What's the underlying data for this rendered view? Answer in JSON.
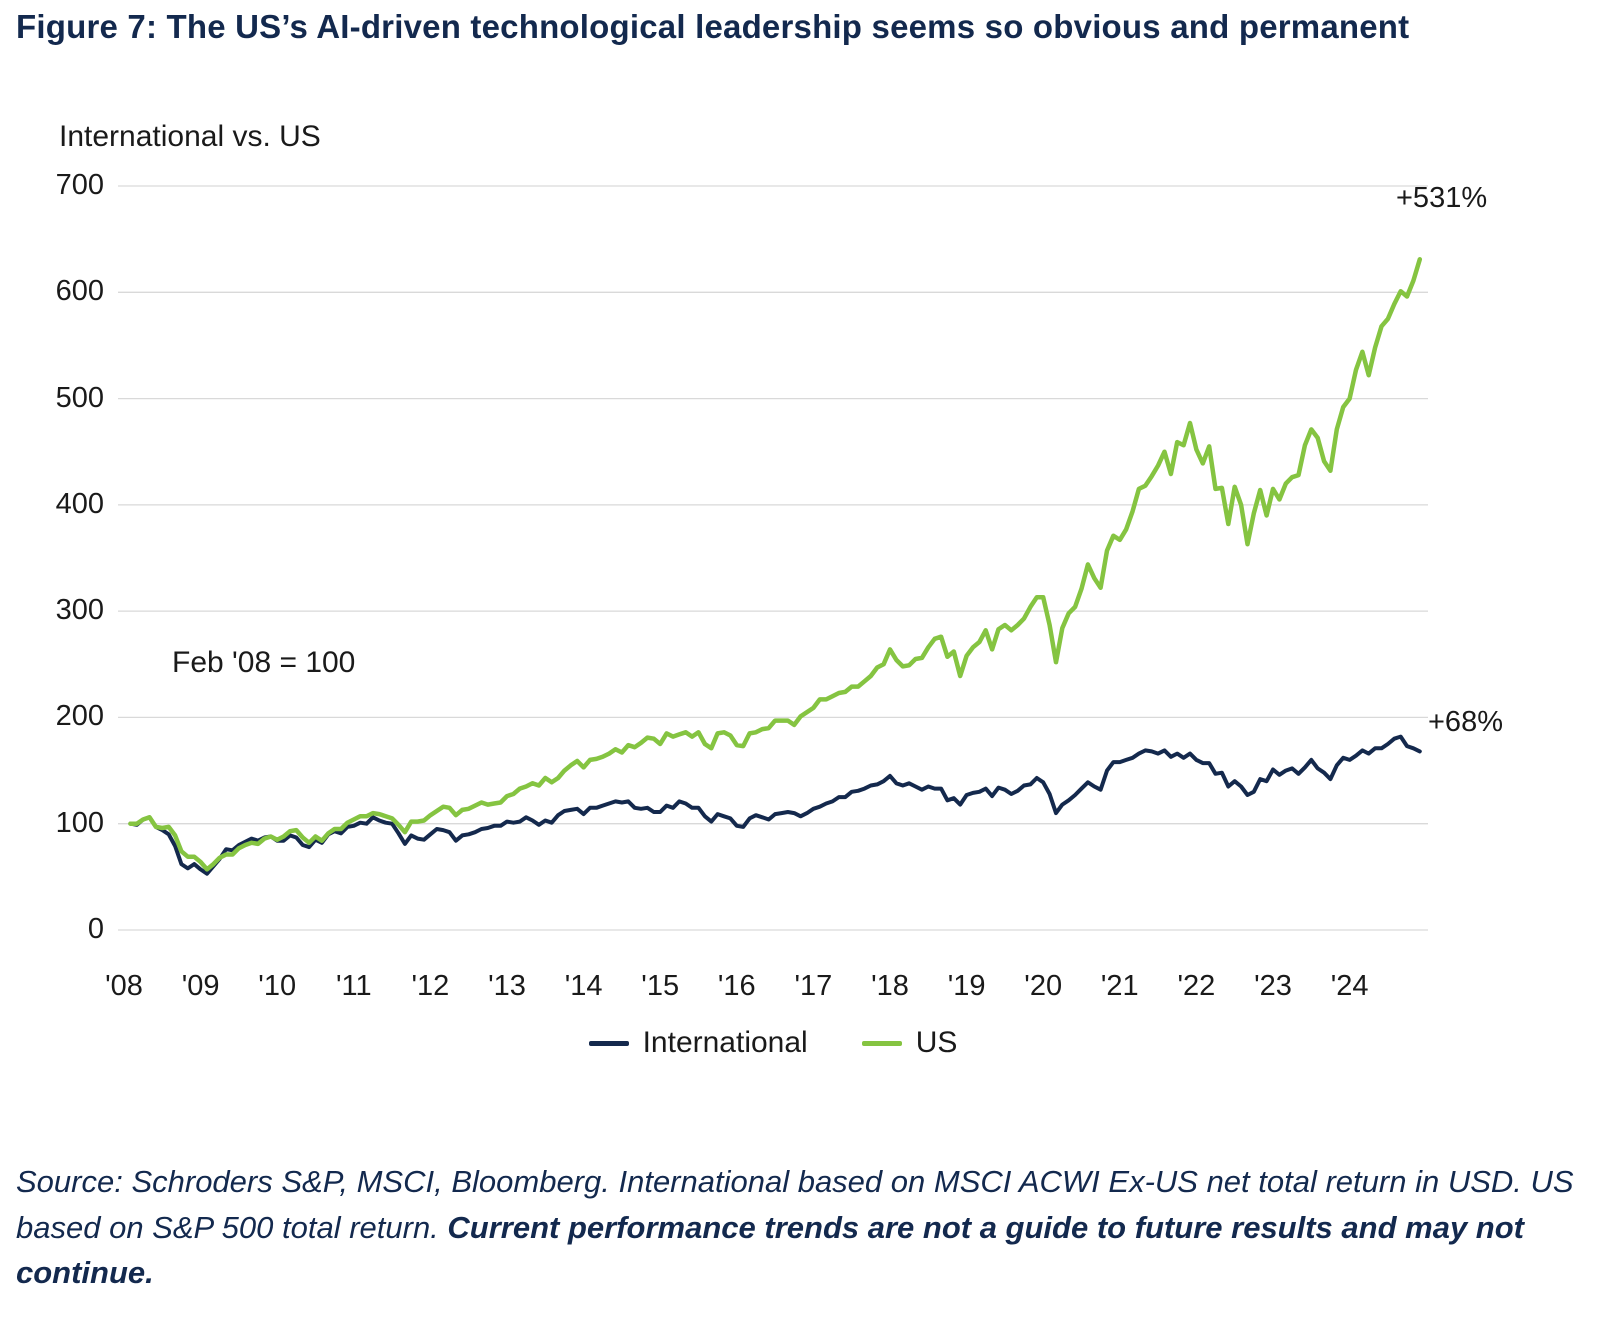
{
  "figure": {
    "title": "Figure 7: The US’s AI-driven technological leadership seems so obvious and permanent"
  },
  "chart_data": {
    "type": "line",
    "title": "Figure 7: The US’s AI-driven technological leadership seems so obvious and permanent",
    "axis_title": "International vs. US",
    "note": "Feb '08 = 100",
    "xlabel": "",
    "ylabel": "International vs. US",
    "ylim": [
      0,
      700
    ],
    "yticks": [
      0,
      100,
      200,
      300,
      400,
      500,
      600,
      700
    ],
    "grid": "horizontal",
    "legend_position": "bottom",
    "xtick_years": [
      2008,
      2009,
      2010,
      2011,
      2012,
      2013,
      2014,
      2015,
      2016,
      2017,
      2018,
      2019,
      2020,
      2021,
      2022,
      2023,
      2024
    ],
    "xtick_labels": [
      "'08",
      "'09",
      "'10",
      "'11",
      "'12",
      "'13",
      "'14",
      "'15",
      "'16",
      "'17",
      "'18",
      "'19",
      "'20",
      "'21",
      "'22",
      "'23",
      "'24"
    ],
    "x_start": 2008.0833,
    "x_step": 0.0833333,
    "series": [
      {
        "name": "International",
        "color": "#14294d",
        "end_label": "+68%",
        "values": [
          100,
          99,
          104,
          106,
          97,
          94,
          90,
          79,
          62,
          58,
          62,
          57,
          53,
          60,
          67,
          76,
          75,
          80,
          83,
          86,
          84,
          87,
          88,
          84,
          84,
          89,
          87,
          80,
          78,
          85,
          82,
          90,
          93,
          91,
          97,
          98,
          101,
          100,
          106,
          103,
          101,
          100,
          91,
          81,
          89,
          86,
          85,
          90,
          95,
          94,
          92,
          84,
          89,
          90,
          92,
          95,
          96,
          98,
          98,
          102,
          101,
          102,
          106,
          103,
          99,
          103,
          101,
          108,
          112,
          113,
          114,
          109,
          115,
          115,
          117,
          119,
          121,
          120,
          121,
          115,
          114,
          115,
          111,
          111,
          117,
          115,
          121,
          119,
          115,
          115,
          107,
          102,
          109,
          107,
          105,
          98,
          97,
          105,
          108,
          106,
          104,
          109,
          110,
          111,
          110,
          107,
          110,
          114,
          116,
          119,
          121,
          125,
          125,
          130,
          131,
          133,
          136,
          137,
          140,
          145,
          138,
          136,
          138,
          135,
          132,
          135,
          133,
          133,
          122,
          124,
          118,
          127,
          129,
          130,
          133,
          126,
          134,
          132,
          128,
          131,
          136,
          137,
          143,
          139,
          128,
          110,
          118,
          122,
          127,
          133,
          139,
          135,
          132,
          150,
          158,
          158,
          160,
          162,
          166,
          169,
          168,
          166,
          169,
          163,
          166,
          162,
          166,
          160,
          157,
          157,
          147,
          148,
          135,
          140,
          135,
          127,
          130,
          142,
          140,
          151,
          146,
          150,
          152,
          147,
          153,
          160,
          152,
          148,
          142,
          155,
          162,
          160,
          164,
          169,
          166,
          171,
          171,
          175,
          180,
          182,
          173,
          171,
          168
        ]
      },
      {
        "name": "US",
        "color": "#85c441",
        "end_label": "+531%",
        "values": [
          100,
          100,
          104,
          106,
          97,
          96,
          97,
          89,
          74,
          69,
          69,
          64,
          57,
          62,
          68,
          71,
          71,
          77,
          80,
          82,
          81,
          86,
          88,
          85,
          88,
          93,
          94,
          87,
          82,
          88,
          84,
          91,
          95,
          95,
          101,
          104,
          107,
          107,
          110,
          109,
          107,
          105,
          99,
          92,
          102,
          102,
          103,
          108,
          112,
          116,
          115,
          108,
          113,
          114,
          117,
          120,
          118,
          119,
          120,
          126,
          128,
          133,
          135,
          138,
          136,
          143,
          139,
          143,
          150,
          155,
          159,
          153,
          160,
          161,
          163,
          166,
          170,
          167,
          174,
          172,
          176,
          181,
          180,
          175,
          185,
          182,
          184,
          186,
          182,
          186,
          175,
          171,
          185,
          186,
          183,
          174,
          173,
          185,
          186,
          189,
          190,
          197,
          197,
          197,
          193,
          201,
          205,
          209,
          217,
          217,
          220,
          223,
          224,
          229,
          229,
          234,
          239,
          247,
          250,
          264,
          254,
          248,
          249,
          255,
          256,
          266,
          274,
          276,
          257,
          262,
          239,
          258,
          266,
          271,
          282,
          264,
          283,
          287,
          282,
          287,
          293,
          304,
          313,
          313,
          287,
          252,
          284,
          298,
          304,
          321,
          344,
          331,
          322,
          357,
          371,
          367,
          377,
          394,
          415,
          418,
          427,
          437,
          450,
          429,
          459,
          456,
          477,
          452,
          439,
          455,
          415,
          416,
          382,
          417,
          400,
          363,
          392,
          414,
          390,
          415,
          405,
          420,
          426,
          428,
          456,
          471,
          463,
          441,
          432,
          471,
          492,
          500,
          527,
          544,
          522,
          548,
          568,
          575,
          589,
          601,
          596,
          611,
          631
        ]
      }
    ]
  },
  "legend": {
    "items": [
      {
        "label": "International"
      },
      {
        "label": "US"
      }
    ]
  },
  "source": {
    "normal": "Source: Schroders S&P, MSCI, Bloomberg. International based on MSCI ACWI Ex-US net total return in USD. US based on S&P 500 total return. ",
    "bold": "Current performance trends are not a guide to future results and may not continue."
  },
  "colors": {
    "title_navy": "#13294e",
    "us_green": "#85c441",
    "international_navy": "#14294d",
    "gridline": "#d9d9d9"
  }
}
